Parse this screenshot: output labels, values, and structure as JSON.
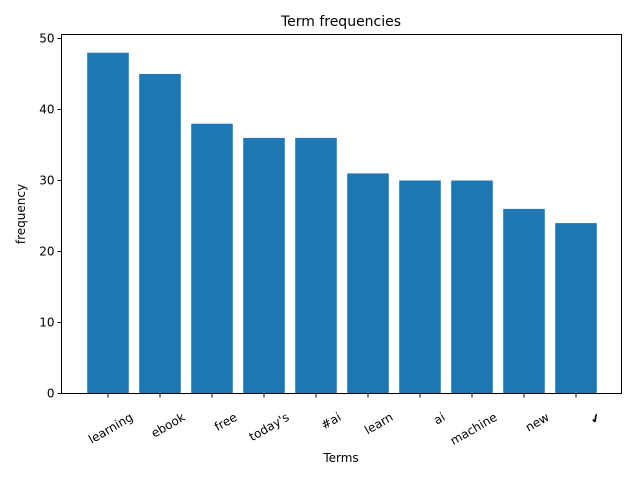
{
  "chart_data": {
    "type": "bar",
    "title": "Term frequencies",
    "xlabel": "Terms",
    "ylabel": "frequency",
    "categories": [
      "learning",
      "ebook",
      "free",
      "today's",
      "#ai",
      "learn",
      "ai",
      "machine",
      "new",
      "✔"
    ],
    "values": [
      48,
      45,
      38,
      36,
      36,
      31,
      30,
      30,
      26,
      24
    ],
    "ylim": [
      0,
      50
    ],
    "yticks": [
      0,
      10,
      20,
      30,
      40,
      50
    ],
    "grid": false,
    "bar_color": "#1f77b4"
  }
}
